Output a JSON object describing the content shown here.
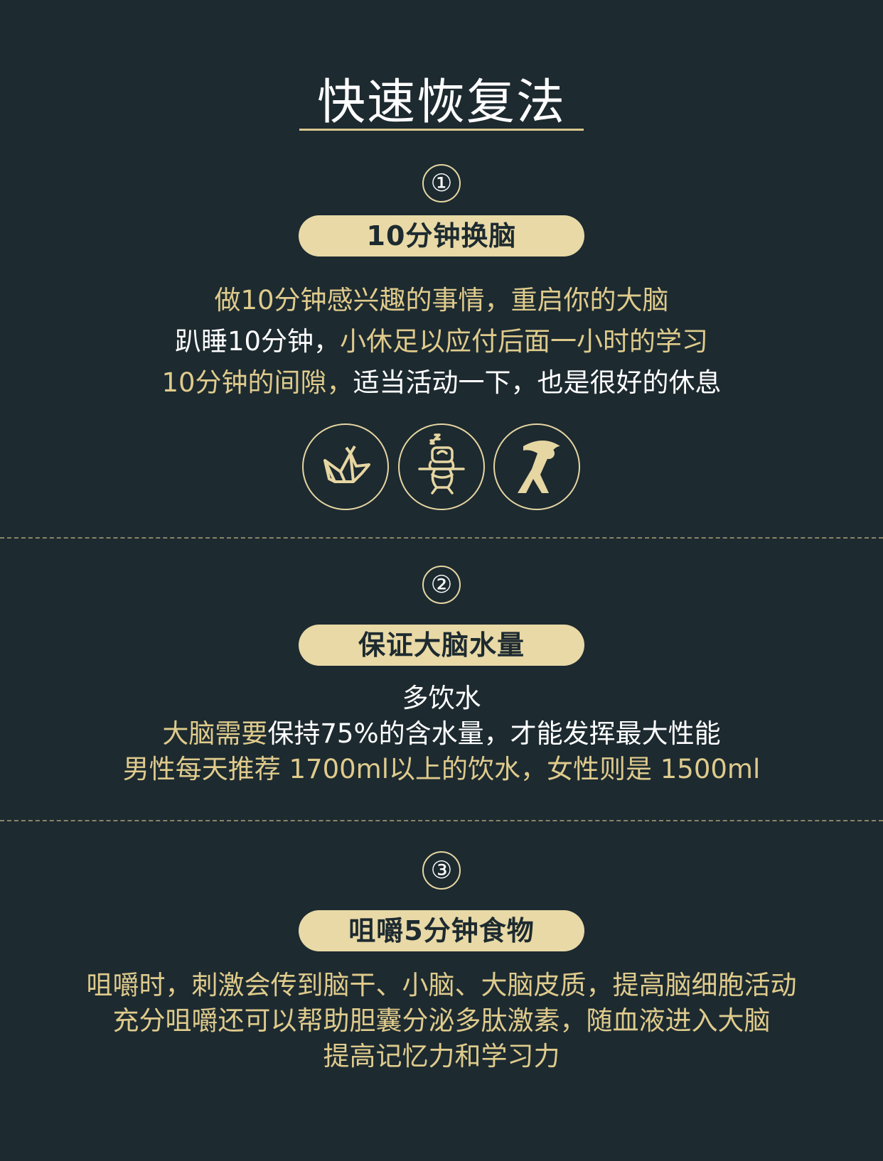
{
  "title": "快速恢复法",
  "sections": [
    {
      "number": "①",
      "heading": "10分钟换脑",
      "lines": [
        [
          {
            "text": "做10分钟感兴趣的事情，",
            "color": "gold"
          },
          {
            "text": "重启你的大脑",
            "color": "gold"
          }
        ],
        [
          {
            "text": "趴睡10分钟，",
            "color": "white"
          },
          {
            "text": "小休足以应付后面一小时的学习",
            "color": "gold"
          }
        ],
        [
          {
            "text": "10分钟的间隙，",
            "color": "gold"
          },
          {
            "text": "适当活动一下，也是很好的休息",
            "color": "white"
          }
        ]
      ],
      "icons": [
        "origami-bird-icon",
        "sleeping-at-desk-icon",
        "stretching-person-icon"
      ]
    },
    {
      "number": "②",
      "heading": "保证大脑水量",
      "lines": [
        [
          {
            "text": "多饮水",
            "color": "white"
          }
        ],
        [
          {
            "text": "大脑需要",
            "color": "gold"
          },
          {
            "text": "保持75%的含水量，才能发挥最大性能",
            "color": "white"
          }
        ],
        [
          {
            "text": "男性每天推荐 1700ml以上的饮水，女性则是 1500ml",
            "color": "gold"
          }
        ]
      ]
    },
    {
      "number": "③",
      "heading": "咀嚼5分钟食物",
      "lines": [
        [
          {
            "text": "咀嚼时，刺激会传到脑干、小脑、大脑皮质，提高脑细胞活动",
            "color": "gold"
          }
        ],
        [
          {
            "text": "充分咀嚼还可以帮助胆囊分泌多肽激素，随血液进入大脑",
            "color": "gold"
          }
        ],
        [
          {
            "text": "提高记忆力和学习力",
            "color": "gold"
          }
        ]
      ]
    }
  ],
  "colors": {
    "background": "#1d2a30",
    "gold": "#dfcb8c",
    "pill": "#e8d9a6",
    "white": "#ffffff"
  }
}
